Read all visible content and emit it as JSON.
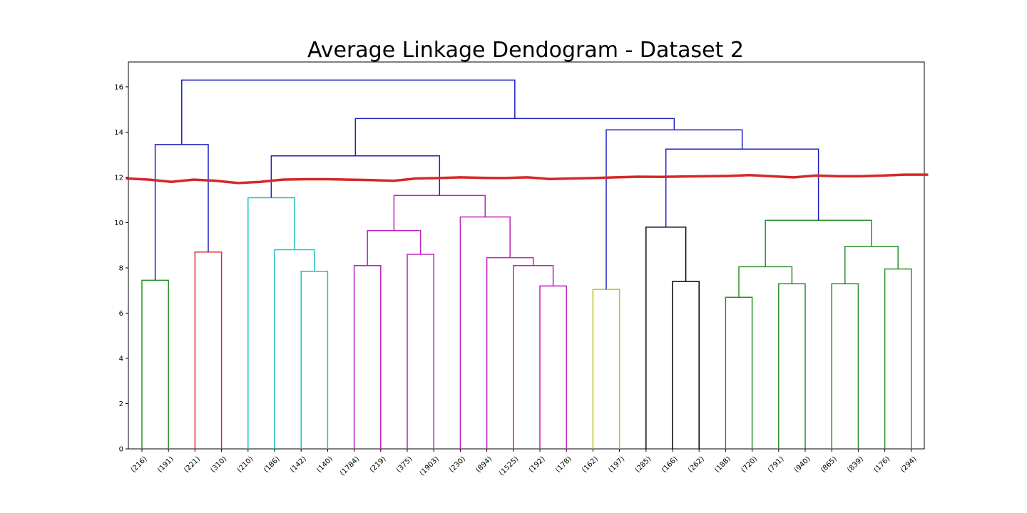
{
  "chart_data": {
    "type": "dendrogram",
    "title": "Average Linkage Dendogram - Dataset 2",
    "xlabel": "",
    "ylabel": "",
    "ylim": [
      0,
      17.1
    ],
    "yticks": [
      0,
      2,
      4,
      6,
      8,
      10,
      12,
      14,
      16
    ],
    "grid": false,
    "leaves": [
      "(216)",
      "(191)",
      "(221)",
      "(310)",
      "(210)",
      "(186)",
      "(142)",
      "(140)",
      "(1784)",
      "(219)",
      "(375)",
      "(1903)",
      "(230)",
      "(894)",
      "(1525)",
      "(192)",
      "(178)",
      "(162)",
      "(197)",
      "(285)",
      "(166)",
      "(262)",
      "(188)",
      "(720)",
      "(791)",
      "(940)",
      "(865)",
      "(839)",
      "(176)",
      "(294)"
    ],
    "colors": {
      "above_threshold": "#1f1fbf",
      "green": "#2a8f2a",
      "red": "#e0282c",
      "cyan": "#1fbfbf",
      "magenta": "#bf1fbf",
      "yellow": "#bfbf1f",
      "black": "#000000",
      "cut_line": "#d62728"
    },
    "merges": [
      {
        "id": "m1",
        "left": "L0",
        "right": "L1",
        "height": 7.45,
        "color": "green"
      },
      {
        "id": "m2",
        "left": "L2",
        "right": "L3",
        "height": 8.7,
        "color": "red"
      },
      {
        "id": "m3",
        "left": "m1",
        "right": "m2",
        "height": 13.45,
        "color": "above_threshold"
      },
      {
        "id": "m4",
        "left": "L6",
        "right": "L7",
        "height": 7.85,
        "color": "cyan"
      },
      {
        "id": "m5",
        "left": "L5",
        "right": "m4",
        "height": 8.8,
        "color": "cyan"
      },
      {
        "id": "m6",
        "left": "L4",
        "right": "m5",
        "height": 11.1,
        "color": "cyan"
      },
      {
        "id": "m7",
        "left": "L8",
        "right": "L9",
        "height": 8.1,
        "color": "magenta"
      },
      {
        "id": "m8",
        "left": "L10",
        "right": "L11",
        "height": 8.6,
        "color": "magenta"
      },
      {
        "id": "m9",
        "left": "m7",
        "right": "m8",
        "height": 9.65,
        "color": "magenta"
      },
      {
        "id": "m10",
        "left": "L15",
        "right": "L16",
        "height": 7.2,
        "color": "magenta"
      },
      {
        "id": "m11",
        "left": "L14",
        "right": "m10",
        "height": 8.1,
        "color": "magenta"
      },
      {
        "id": "m12",
        "left": "L13",
        "right": "m11",
        "height": 8.45,
        "color": "magenta"
      },
      {
        "id": "m13",
        "left": "L12",
        "right": "m12",
        "height": 10.25,
        "color": "magenta"
      },
      {
        "id": "m14",
        "left": "m9",
        "right": "m13",
        "height": 11.2,
        "color": "magenta"
      },
      {
        "id": "m15",
        "left": "m6",
        "right": "m14",
        "height": 12.95,
        "color": "above_threshold"
      },
      {
        "id": "m16",
        "left": "L17",
        "right": "L18",
        "height": 7.05,
        "color": "yellow"
      },
      {
        "id": "m17",
        "left": "L20",
        "right": "L21",
        "height": 7.4,
        "color": "black"
      },
      {
        "id": "m18",
        "left": "L19",
        "right": "m17",
        "height": 9.8,
        "color": "black"
      },
      {
        "id": "m19",
        "left": "L22",
        "right": "L23",
        "height": 6.7,
        "color": "green"
      },
      {
        "id": "m20",
        "left": "L24",
        "right": "L25",
        "height": 7.3,
        "color": "green"
      },
      {
        "id": "m21",
        "left": "m19",
        "right": "m20",
        "height": 8.05,
        "color": "green"
      },
      {
        "id": "m22",
        "left": "L26",
        "right": "L27",
        "height": 7.3,
        "color": "green"
      },
      {
        "id": "m23",
        "left": "L28",
        "right": "L29",
        "height": 7.95,
        "color": "green"
      },
      {
        "id": "m24",
        "left": "m22",
        "right": "m23",
        "height": 8.95,
        "color": "green"
      },
      {
        "id": "m25",
        "left": "m21",
        "right": "m24",
        "height": 10.1,
        "color": "green"
      },
      {
        "id": "m26",
        "left": "m18",
        "right": "m25",
        "height": 13.25,
        "color": "above_threshold"
      },
      {
        "id": "m27",
        "left": "m16",
        "right": "m26",
        "height": 14.1,
        "color": "above_threshold"
      },
      {
        "id": "m28",
        "left": "m15",
        "right": "m27",
        "height": 14.6,
        "color": "above_threshold"
      },
      {
        "id": "m29",
        "left": "m3",
        "right": "m28",
        "height": 16.3,
        "color": "above_threshold"
      }
    ],
    "cut_line": {
      "description_free": true,
      "y": [
        11.95,
        11.9,
        11.8,
        11.9,
        11.85,
        11.75,
        11.8,
        11.9,
        11.92,
        11.92,
        11.9,
        11.88,
        11.85,
        11.95,
        11.97,
        12.0,
        11.98,
        11.97,
        12.0,
        11.93,
        11.95,
        11.97,
        12.0,
        12.03,
        12.02,
        12.04,
        12.05,
        12.06,
        12.1,
        12.05,
        12.0,
        12.08,
        12.05,
        12.05,
        12.08,
        12.12,
        12.12
      ]
    }
  }
}
